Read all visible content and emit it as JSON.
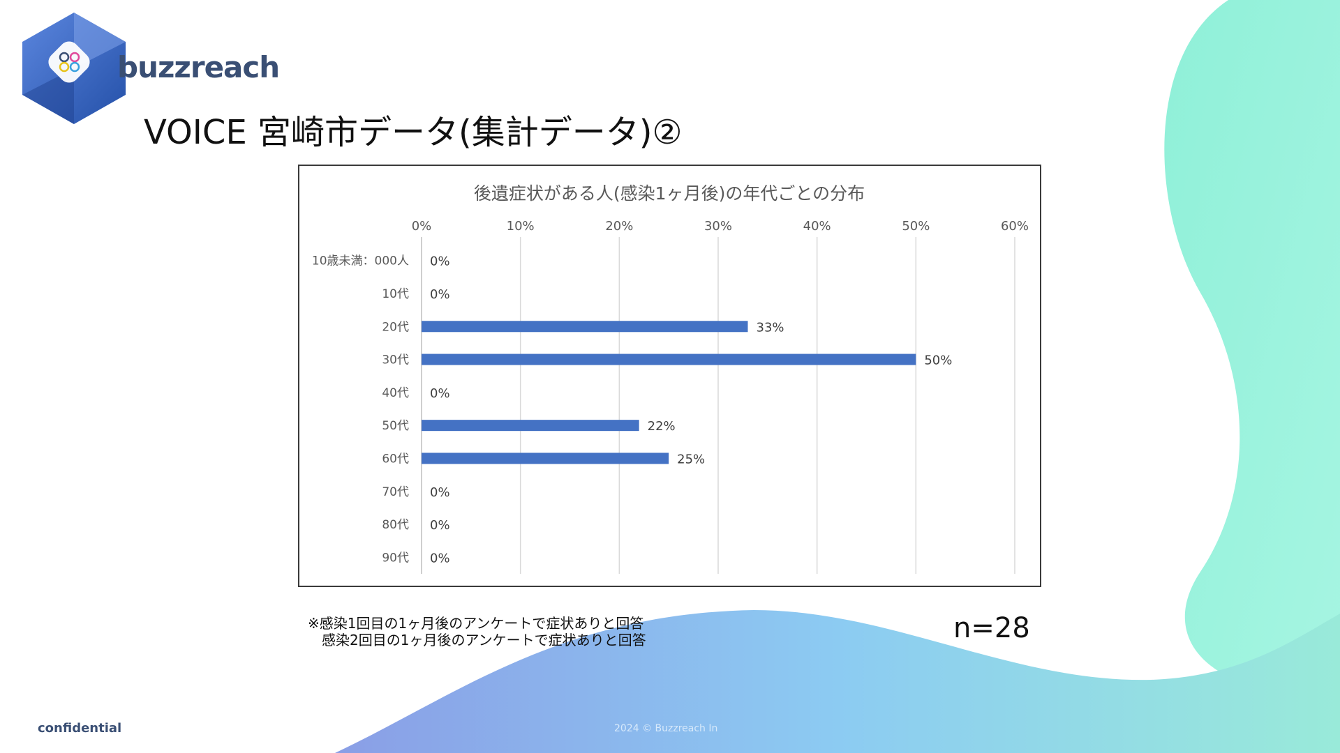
{
  "logo": {
    "text": "buzzreach"
  },
  "slide": {
    "title": "VOICE 宮崎市データ(集計データ)②",
    "notes": [
      "※感染1回目の1ヶ月後のアンケートで症状ありと回答",
      "　感染2回目の1ヶ月後のアンケートで症状ありと回答"
    ],
    "n_label": "n=28",
    "confidential": "confidential",
    "copyright": "2024 © Buzzreach In"
  },
  "colors": {
    "bar": "#4472c4",
    "accent_blue": "#3a4f74",
    "wave_teal": "#8ff0d8",
    "wave_blue": "#8fb4ea"
  },
  "chart_data": {
    "type": "bar",
    "orientation": "horizontal",
    "title": "後遺症状がある人(感染1ヶ月後)の年代ごとの分布",
    "categories": [
      "10歳未満：000人",
      "10代",
      "20代",
      "30代",
      "40代",
      "50代",
      "60代",
      "70代",
      "80代",
      "90代"
    ],
    "values": [
      0,
      0,
      33,
      50,
      0,
      22,
      25,
      0,
      0,
      0
    ],
    "data_labels": [
      "0%",
      "0%",
      "33%",
      "50%",
      "0%",
      "22%",
      "25%",
      "0%",
      "0%",
      "0%"
    ],
    "xlim": [
      0,
      60
    ],
    "x_ticks": [
      0,
      10,
      20,
      30,
      40,
      50,
      60
    ],
    "x_tick_labels": [
      "0%",
      "10%",
      "20%",
      "30%",
      "40%",
      "50%",
      "60%"
    ],
    "x_axis_position": "top",
    "grid": true,
    "legend": "none"
  }
}
